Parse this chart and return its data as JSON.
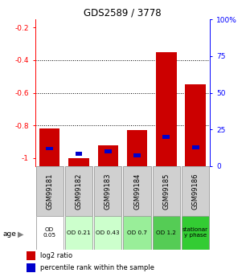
{
  "title": "GDS2589 / 3778",
  "samples": [
    "GSM99181",
    "GSM99182",
    "GSM99183",
    "GSM99184",
    "GSM99185",
    "GSM99186"
  ],
  "log2_ratio": [
    -0.82,
    -1.0,
    -0.92,
    -0.83,
    -0.35,
    -0.55
  ],
  "percentile_rank": [
    0.12,
    0.085,
    0.1,
    0.075,
    0.2,
    0.13
  ],
  "ylim": [
    -1.05,
    -0.15
  ],
  "yticks": [
    -1.0,
    -0.8,
    -0.6,
    -0.4,
    -0.2
  ],
  "ytick_labels": [
    "-1",
    "-0.8",
    "-0.6",
    "-0.4",
    "-0.2"
  ],
  "bar_color_red": "#cc0000",
  "bar_color_blue": "#0000cc",
  "age_labels": [
    "OD\n0.05",
    "OD 0.21",
    "OD 0.43",
    "OD 0.7",
    "OD 1.2",
    "stationar\ny phase"
  ],
  "age_bg_colors": [
    "#ffffff",
    "#ccffcc",
    "#ccffcc",
    "#99ee99",
    "#55cc55",
    "#33cc33"
  ],
  "label_log2": "log2 ratio",
  "label_pct": "percentile rank within the sample",
  "age_label": "age",
  "bar_width": 0.7
}
